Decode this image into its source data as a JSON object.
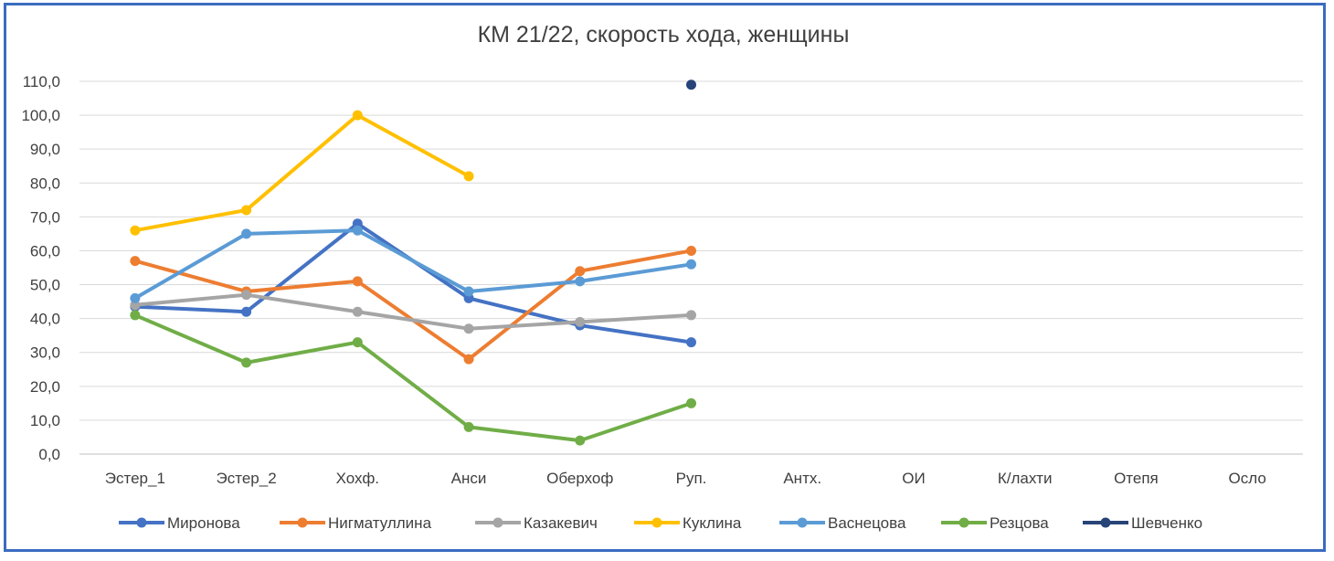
{
  "chart_data": {
    "type": "line",
    "title": "КМ 21/22, скорость хода, женщины",
    "xlabel": "",
    "ylabel": "",
    "categories": [
      "Эстер_1",
      "Эстер_2",
      "Хохф.",
      "Анси",
      "Оберхоф",
      "Руп.",
      "Антх.",
      "ОИ",
      "К/лахти",
      "Отепя",
      "Осло"
    ],
    "ylim": [
      0,
      110
    ],
    "yticks": [
      "0,0",
      "10,0",
      "20,0",
      "30,0",
      "40,0",
      "50,0",
      "60,0",
      "70,0",
      "80,0",
      "90,0",
      "100,0",
      "110,0"
    ],
    "grid": true,
    "legend_position": "bottom",
    "series": [
      {
        "name": "Миронова",
        "color": "#4472c4",
        "values": [
          43.5,
          42,
          68,
          46,
          38,
          33,
          null,
          null,
          null,
          null,
          null
        ]
      },
      {
        "name": "Нигматуллина",
        "color": "#ed7d31",
        "values": [
          57,
          48,
          51,
          28,
          54,
          60,
          null,
          null,
          null,
          null,
          null
        ]
      },
      {
        "name": "Казакевич",
        "color": "#a5a5a5",
        "values": [
          44,
          47,
          42,
          37,
          39,
          41,
          null,
          null,
          null,
          null,
          null
        ]
      },
      {
        "name": "Куклина",
        "color": "#ffc000",
        "values": [
          66,
          72,
          100,
          82,
          null,
          null,
          null,
          null,
          null,
          null,
          null
        ]
      },
      {
        "name": "Васнецова",
        "color": "#5b9bd5",
        "values": [
          46,
          65,
          66,
          48,
          51,
          56,
          null,
          null,
          null,
          null,
          null
        ]
      },
      {
        "name": "Резцова",
        "color": "#70ad47",
        "values": [
          41,
          27,
          33,
          8,
          4,
          15,
          null,
          null,
          null,
          null,
          null
        ]
      },
      {
        "name": "Шевченко",
        "color": "#264478",
        "values": [
          null,
          null,
          null,
          null,
          null,
          109,
          null,
          null,
          null,
          null,
          null
        ]
      }
    ]
  }
}
